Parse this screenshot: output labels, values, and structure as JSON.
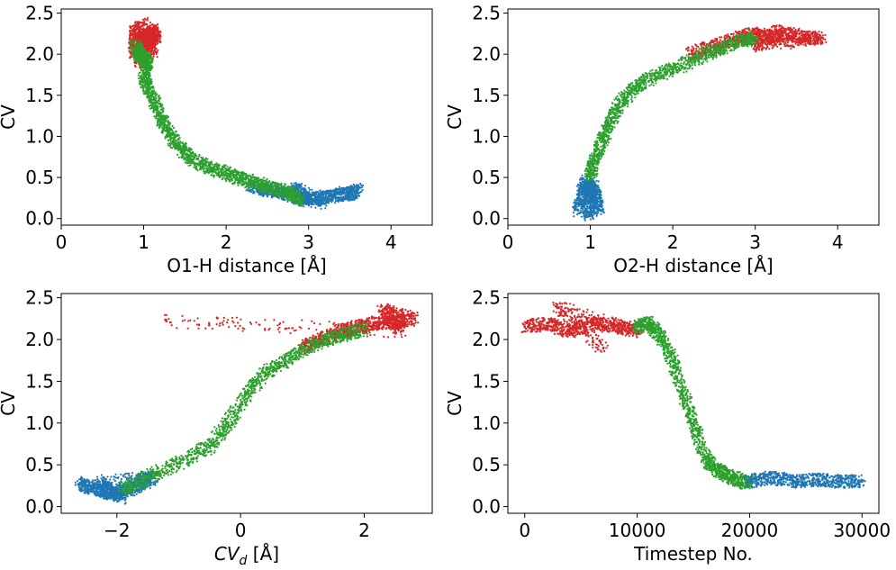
{
  "chart_data": [
    {
      "type": "scatter",
      "xlabel": "O1-H distance [Å]",
      "ylabel": "CV",
      "xlim": [
        0,
        4.5
      ],
      "ylim": [
        -0.08,
        2.55
      ],
      "xticks": [
        "0",
        "1",
        "2",
        "3",
        "4"
      ],
      "yticks": [
        "0.0",
        "0.5",
        "1.0",
        "1.5",
        "2.0",
        "2.5"
      ],
      "grid": false,
      "series": [
        {
          "color": "#d62728",
          "points": [
            [
              0.88,
              2.0
            ],
            [
              0.9,
              2.35
            ],
            [
              0.95,
              1.9
            ],
            [
              1.0,
              2.25
            ],
            [
              1.05,
              2.1
            ],
            [
              1.1,
              2.3
            ],
            [
              1.15,
              2.2
            ],
            [
              0.92,
              2.15
            ],
            [
              1.12,
              2.0
            ],
            [
              1.0,
              2.38
            ]
          ]
        },
        {
          "color": "#1f77b4",
          "points": [
            [
              2.3,
              0.4
            ],
            [
              2.5,
              0.35
            ],
            [
              2.7,
              0.3
            ],
            [
              2.9,
              0.25
            ],
            [
              3.1,
              0.25
            ],
            [
              3.3,
              0.28
            ],
            [
              3.5,
              0.3
            ],
            [
              3.6,
              0.35
            ],
            [
              3.0,
              0.2
            ],
            [
              2.8,
              0.38
            ],
            [
              3.2,
              0.18
            ]
          ]
        },
        {
          "color": "#2ca02c",
          "points": [
            [
              0.9,
              2.1
            ],
            [
              0.95,
              2.0
            ],
            [
              1.0,
              1.95
            ],
            [
              1.05,
              1.9
            ],
            [
              1.0,
              1.7
            ],
            [
              1.1,
              1.5
            ],
            [
              1.2,
              1.25
            ],
            [
              1.3,
              1.05
            ],
            [
              1.45,
              0.85
            ],
            [
              1.6,
              0.72
            ],
            [
              1.8,
              0.62
            ],
            [
              2.0,
              0.55
            ],
            [
              2.2,
              0.48
            ],
            [
              2.4,
              0.42
            ],
            [
              2.6,
              0.36
            ],
            [
              2.8,
              0.3
            ],
            [
              2.9,
              0.22
            ]
          ]
        }
      ]
    },
    {
      "type": "scatter",
      "xlabel": "O2-H distance [Å]",
      "ylabel": "CV",
      "xlim": [
        0,
        4.5
      ],
      "ylim": [
        -0.08,
        2.55
      ],
      "xticks": [
        "0",
        "1",
        "2",
        "3",
        "4"
      ],
      "yticks": [
        "0.0",
        "0.5",
        "1.0",
        "1.5",
        "2.0",
        "2.5"
      ],
      "grid": false,
      "series": [
        {
          "color": "#d62728",
          "points": [
            [
              2.2,
              2.0
            ],
            [
              2.5,
              2.1
            ],
            [
              2.8,
              2.2
            ],
            [
              3.0,
              2.25
            ],
            [
              3.2,
              2.2
            ],
            [
              3.4,
              2.25
            ],
            [
              3.6,
              2.2
            ],
            [
              3.8,
              2.2
            ],
            [
              3.0,
              2.1
            ],
            [
              3.3,
              2.3
            ]
          ]
        },
        {
          "color": "#1f77b4",
          "points": [
            [
              0.85,
              0.1
            ],
            [
              0.9,
              0.3
            ],
            [
              0.95,
              0.45
            ],
            [
              1.0,
              0.2
            ],
            [
              1.05,
              0.4
            ],
            [
              1.1,
              0.15
            ],
            [
              0.95,
              0.05
            ],
            [
              1.0,
              0.5
            ]
          ]
        },
        {
          "color": "#2ca02c",
          "points": [
            [
              1.0,
              0.5
            ],
            [
              1.05,
              0.7
            ],
            [
              1.15,
              0.95
            ],
            [
              1.25,
              1.2
            ],
            [
              1.4,
              1.45
            ],
            [
              1.6,
              1.65
            ],
            [
              1.9,
              1.78
            ],
            [
              2.2,
              1.9
            ],
            [
              2.5,
              2.05
            ],
            [
              2.8,
              2.15
            ],
            [
              3.0,
              2.2
            ]
          ]
        }
      ]
    },
    {
      "type": "scatter",
      "xlabel": "CV_d [Å]",
      "ylabel": "CV",
      "xlim": [
        -2.9,
        3.1
      ],
      "ylim": [
        -0.08,
        2.55
      ],
      "xticks": [
        "−2",
        "0",
        "2"
      ],
      "yticks": [
        "0.0",
        "0.5",
        "1.0",
        "1.5",
        "2.0",
        "2.5"
      ],
      "grid": false,
      "series": [
        {
          "color": "#d62728",
          "points": [
            [
              1.0,
              1.9
            ],
            [
              1.3,
              2.0
            ],
            [
              1.6,
              2.1
            ],
            [
              1.9,
              2.15
            ],
            [
              2.2,
              2.2
            ],
            [
              2.5,
              2.2
            ],
            [
              2.8,
              2.25
            ],
            [
              2.3,
              2.35
            ],
            [
              2.6,
              2.1
            ],
            [
              -1.2,
              2.22
            ]
          ]
        },
        {
          "color": "#1f77b4",
          "points": [
            [
              -2.6,
              0.28
            ],
            [
              -2.4,
              0.22
            ],
            [
              -2.2,
              0.18
            ],
            [
              -2.0,
              0.15
            ],
            [
              -1.8,
              0.2
            ],
            [
              -1.6,
              0.28
            ],
            [
              -1.4,
              0.35
            ],
            [
              -2.3,
              0.3
            ],
            [
              -1.9,
              0.1
            ]
          ]
        },
        {
          "color": "#2ca02c",
          "points": [
            [
              -1.9,
              0.2
            ],
            [
              -1.5,
              0.35
            ],
            [
              -1.0,
              0.52
            ],
            [
              -0.5,
              0.72
            ],
            [
              -0.2,
              1.0
            ],
            [
              0.1,
              1.35
            ],
            [
              0.4,
              1.6
            ],
            [
              0.8,
              1.78
            ],
            [
              1.2,
              1.95
            ],
            [
              1.6,
              2.05
            ],
            [
              2.0,
              2.12
            ]
          ]
        }
      ]
    },
    {
      "type": "scatter",
      "xlabel": "Timestep No.",
      "ylabel": "CV",
      "xlim": [
        -1500,
        31500
      ],
      "ylim": [
        -0.08,
        2.55
      ],
      "xticks": [
        "0",
        "10000",
        "20000",
        "30000"
      ],
      "yticks": [
        "0.0",
        "0.5",
        "1.0",
        "1.5",
        "2.0",
        "2.5"
      ],
      "grid": false,
      "series": [
        {
          "color": "#d62728",
          "points": [
            [
              0,
              2.15
            ],
            [
              2000,
              2.2
            ],
            [
              4000,
              2.1
            ],
            [
              6000,
              2.2
            ],
            [
              8000,
              2.15
            ],
            [
              10000,
              2.1
            ],
            [
              3000,
              2.38
            ],
            [
              7000,
              1.9
            ]
          ]
        },
        {
          "color": "#2ca02c",
          "points": [
            [
              10000,
              2.15
            ],
            [
              11000,
              2.2
            ],
            [
              12000,
              2.05
            ],
            [
              13000,
              1.8
            ],
            [
              14000,
              1.4
            ],
            [
              15000,
              1.0
            ],
            [
              16000,
              0.6
            ],
            [
              17000,
              0.45
            ],
            [
              18000,
              0.38
            ],
            [
              19000,
              0.32
            ],
            [
              20000,
              0.28
            ]
          ]
        },
        {
          "color": "#1f77b4",
          "points": [
            [
              20000,
              0.3
            ],
            [
              22000,
              0.35
            ],
            [
              24000,
              0.3
            ],
            [
              26000,
              0.32
            ],
            [
              28000,
              0.3
            ],
            [
              30000,
              0.3
            ]
          ]
        }
      ]
    }
  ]
}
